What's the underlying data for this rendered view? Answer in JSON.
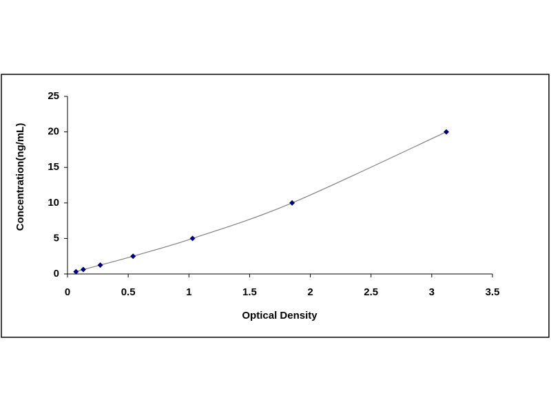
{
  "chart_data": {
    "type": "scatter",
    "x_label": "Optical Density",
    "y_label": "Concentration(ng/mL)",
    "x": [
      0.07,
      0.13,
      0.27,
      0.54,
      1.03,
      1.85,
      3.12
    ],
    "values": [
      0.3125,
      0.625,
      1.25,
      2.5,
      5,
      10,
      20
    ],
    "color": "#000080",
    "line_color": "#808080",
    "smooth_line": true,
    "xlim": [
      0,
      3.5
    ],
    "xticks": [
      0,
      0.5,
      1,
      1.5,
      2,
      2.5,
      3,
      3.5
    ],
    "ylim": [
      0,
      25
    ],
    "yticks": [
      0,
      5,
      10,
      15,
      20,
      25
    ],
    "grid": false
  }
}
